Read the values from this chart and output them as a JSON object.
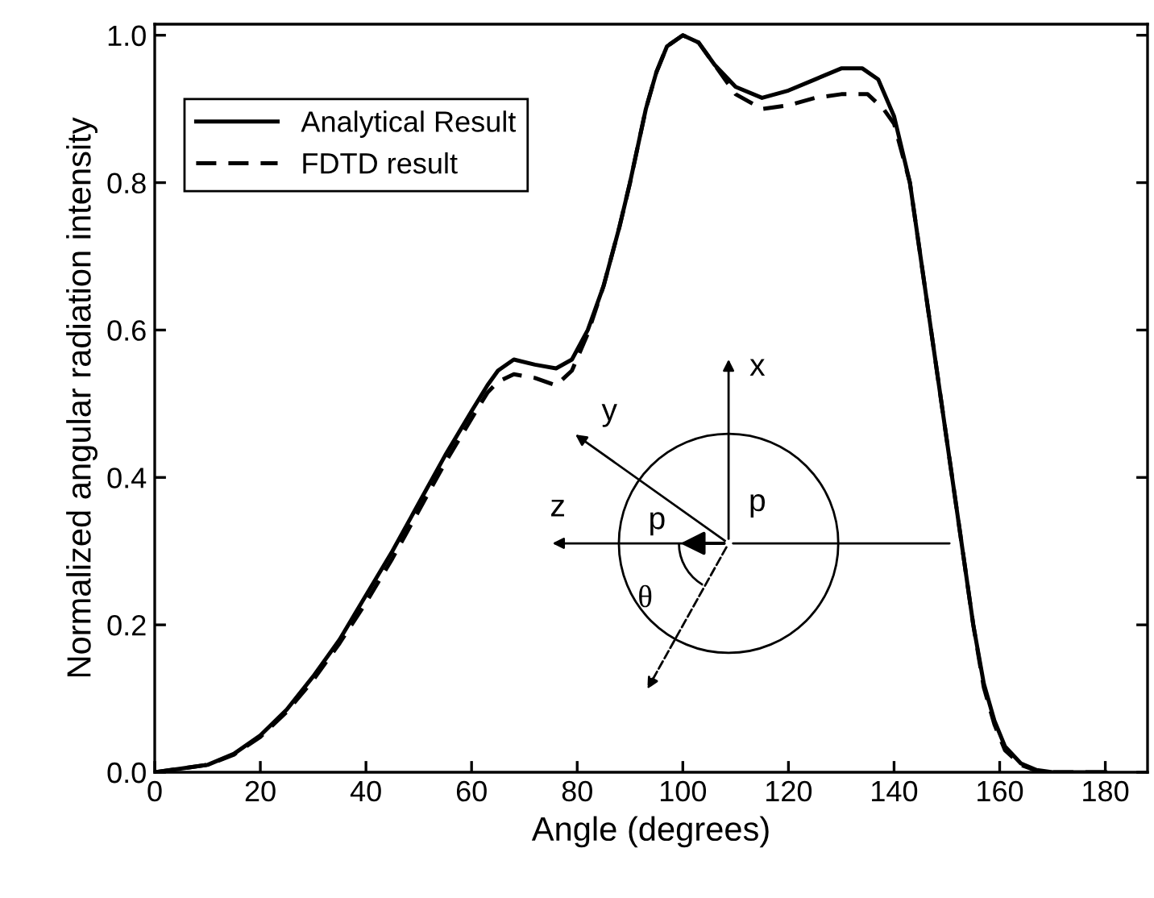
{
  "chart_data": {
    "type": "line",
    "xlabel": "Angle (degrees)",
    "ylabel": "Normalized angular radiation intensity",
    "xlim": [
      0,
      188
    ],
    "ylim": [
      0,
      1.015
    ],
    "xticks": [
      0,
      20,
      40,
      60,
      80,
      100,
      120,
      140,
      160,
      180
    ],
    "yticks": [
      {
        "value": 0,
        "label": "0.0"
      },
      {
        "value": 0.2,
        "label": "0.2"
      },
      {
        "value": 0.4,
        "label": "0.4"
      },
      {
        "value": 0.6,
        "label": "0.6"
      },
      {
        "value": 0.8,
        "label": "0.8"
      },
      {
        "value": 1.0,
        "label": "1.0"
      }
    ],
    "legend": "top left",
    "grid": false,
    "annotations": [
      "x",
      "y",
      "z",
      "p",
      "p",
      "θ"
    ],
    "series": [
      {
        "name": "Analytical Result",
        "color": "#000000",
        "line_style": "solid",
        "x": [
          0,
          10,
          15,
          20,
          25,
          30,
          35,
          40,
          45,
          50,
          55,
          60,
          63,
          65,
          68,
          72,
          76,
          79,
          82,
          85,
          88,
          90,
          93,
          95,
          97,
          100,
          103,
          106,
          110,
          115,
          120,
          125,
          130,
          134,
          137,
          140,
          143,
          146,
          149,
          151,
          153,
          155,
          157,
          159,
          161,
          164,
          167,
          170,
          180
        ],
        "values": [
          0,
          0.01,
          0.025,
          0.05,
          0.085,
          0.13,
          0.18,
          0.24,
          0.3,
          0.365,
          0.43,
          0.49,
          0.525,
          0.545,
          0.56,
          0.553,
          0.548,
          0.56,
          0.6,
          0.66,
          0.74,
          0.8,
          0.9,
          0.95,
          0.985,
          1.0,
          0.99,
          0.96,
          0.93,
          0.915,
          0.925,
          0.94,
          0.955,
          0.955,
          0.94,
          0.89,
          0.8,
          0.65,
          0.5,
          0.4,
          0.3,
          0.2,
          0.12,
          0.07,
          0.035,
          0.012,
          0.003,
          0,
          0
        ]
      },
      {
        "name": "FDTD result",
        "color": "#000000",
        "line_style": "dashed",
        "x": [
          0,
          10,
          15,
          20,
          25,
          30,
          35,
          40,
          45,
          50,
          55,
          60,
          63,
          65,
          68,
          72,
          76,
          79,
          82,
          85,
          88,
          90,
          93,
          95,
          97,
          100,
          103,
          106,
          110,
          115,
          120,
          125,
          130,
          135,
          138,
          140,
          143,
          146,
          149,
          151,
          153,
          155,
          157,
          159,
          161,
          164,
          167,
          170,
          180
        ],
        "values": [
          0,
          0.01,
          0.024,
          0.048,
          0.082,
          0.125,
          0.175,
          0.23,
          0.29,
          0.355,
          0.42,
          0.48,
          0.515,
          0.53,
          0.54,
          0.535,
          0.525,
          0.545,
          0.595,
          0.66,
          0.74,
          0.8,
          0.9,
          0.95,
          0.985,
          1.0,
          0.99,
          0.96,
          0.92,
          0.9,
          0.905,
          0.915,
          0.92,
          0.92,
          0.9,
          0.88,
          0.8,
          0.65,
          0.5,
          0.4,
          0.3,
          0.2,
          0.115,
          0.065,
          0.03,
          0.01,
          0.002,
          0,
          0
        ]
      }
    ]
  }
}
